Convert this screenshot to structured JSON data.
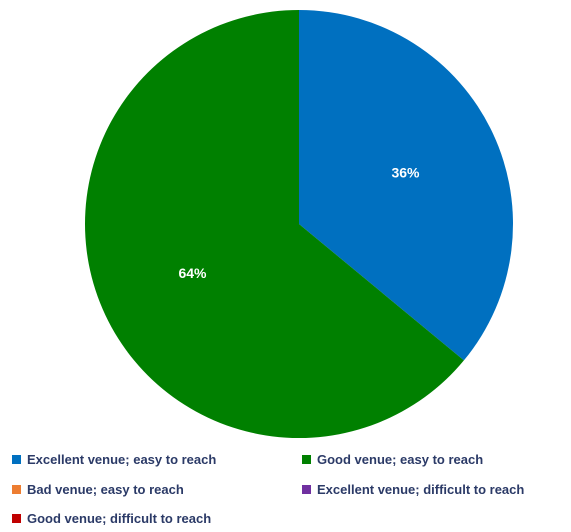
{
  "chart_data": {
    "type": "pie",
    "title": "",
    "categories": [
      "Excellent venue; easy to reach",
      "Good venue; easy to reach",
      "Bad venue; easy to reach",
      "Excellent venue; difficult to reach",
      "Good venue; difficult to reach"
    ],
    "values": [
      36,
      64,
      0,
      0,
      0
    ],
    "value_labels": [
      "36%",
      "64%",
      "",
      "",
      ""
    ],
    "colors": [
      "#0070c0",
      "#008000",
      "#ed7d31",
      "#7030a0",
      "#c00000"
    ],
    "start_angle_deg": 0,
    "direction": "clockwise",
    "legend_position": "bottom"
  }
}
